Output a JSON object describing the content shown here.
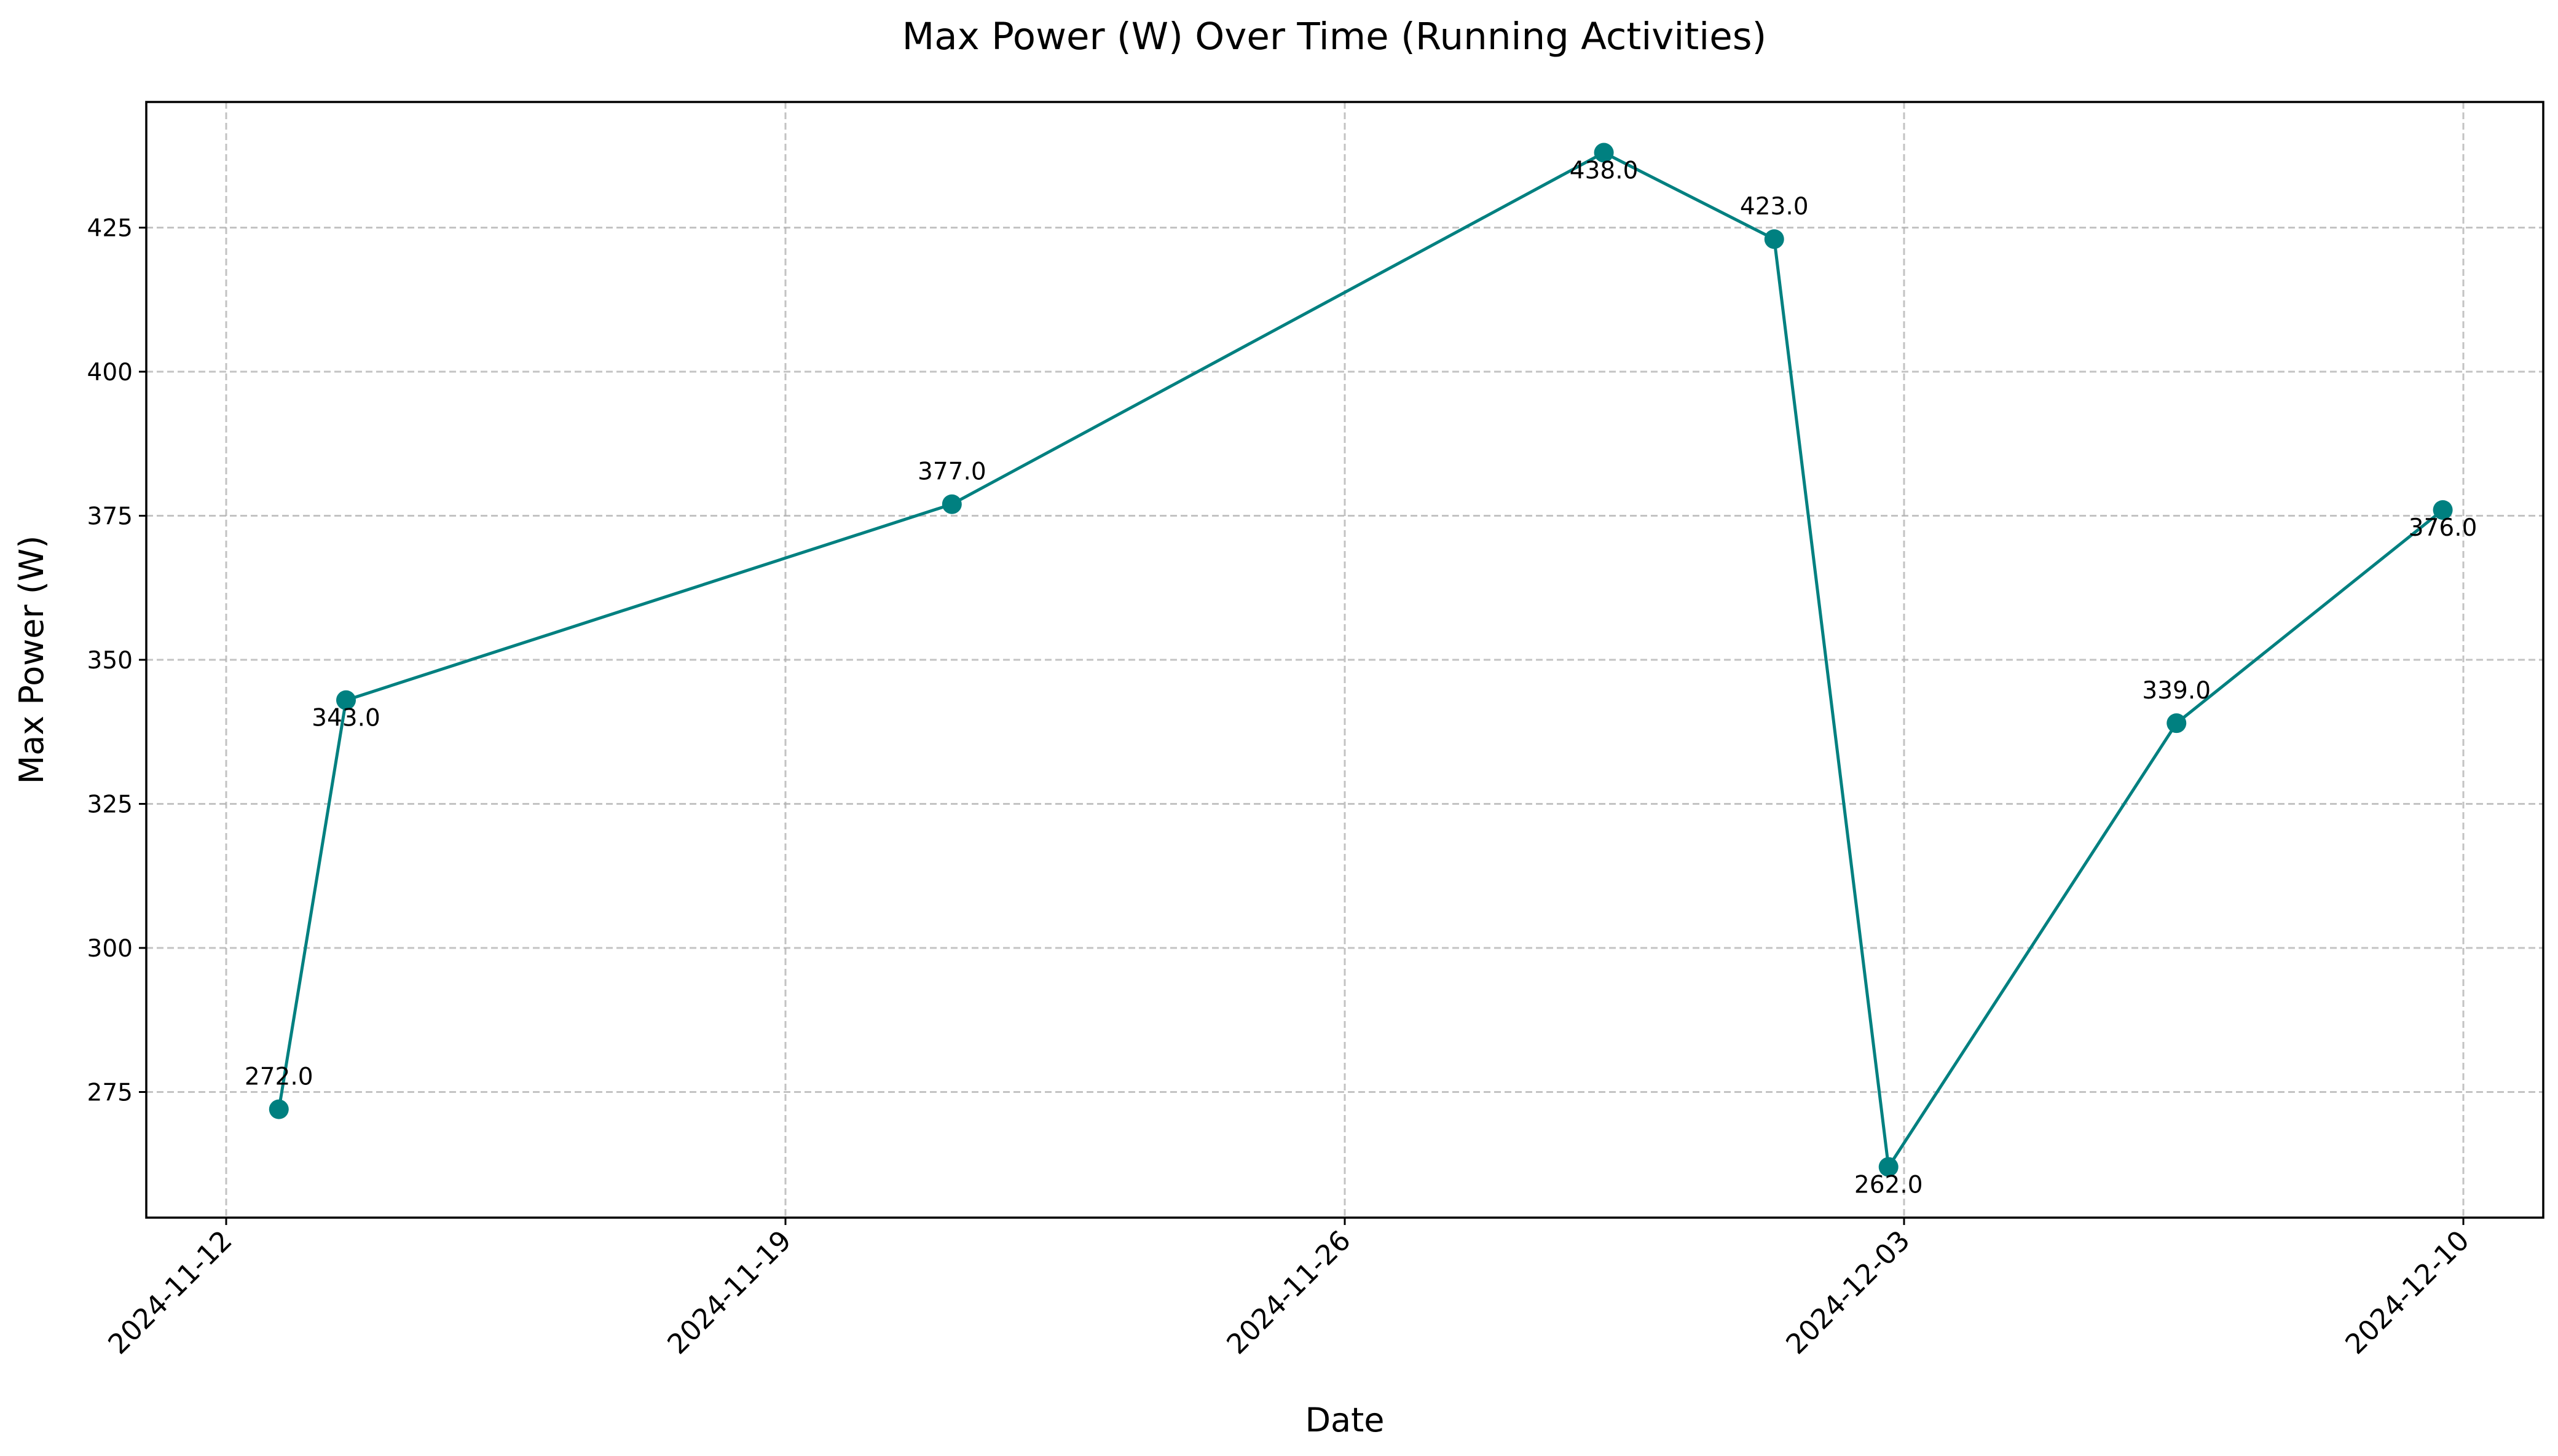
{
  "chart_data": {
    "type": "line",
    "title": "Max Power (W) Over Time (Running Activities)",
    "xlabel": "Date",
    "ylabel": "Max Power (W)",
    "grid": true,
    "x_type": "date",
    "xlim": [
      "2024-11-11T00:00:00",
      "2024-12-11T00:00:00"
    ],
    "ylim": [
      253.2,
      446.8
    ],
    "x_ticks": [
      "2024-11-12",
      "2024-11-19",
      "2024-11-26",
      "2024-12-03",
      "2024-12-10"
    ],
    "y_ticks": [
      275,
      300,
      325,
      350,
      375,
      400,
      425
    ],
    "series": [
      {
        "color": "#008080",
        "marker": "circle",
        "x": [
          "2024-11-12T15:50:00",
          "2024-11-13T12:00:00",
          "2024-11-21T02:00:00",
          "2024-11-29T05:50:00",
          "2024-12-01T09:00:00",
          "2024-12-02T19:20:00",
          "2024-12-06T09:50:00",
          "2024-12-09T17:50:00"
        ],
        "values": [
          272.0,
          343.0,
          377.0,
          438.0,
          423.0,
          262.0,
          339.0,
          376.0
        ],
        "data_labels": [
          "272.0",
          "343.0",
          "377.0",
          "438.0",
          "423.0",
          "262.0",
          "339.0",
          "376.0"
        ],
        "label_side": [
          "above",
          "below",
          "above",
          "below",
          "above",
          "below",
          "above",
          "below"
        ]
      }
    ]
  }
}
